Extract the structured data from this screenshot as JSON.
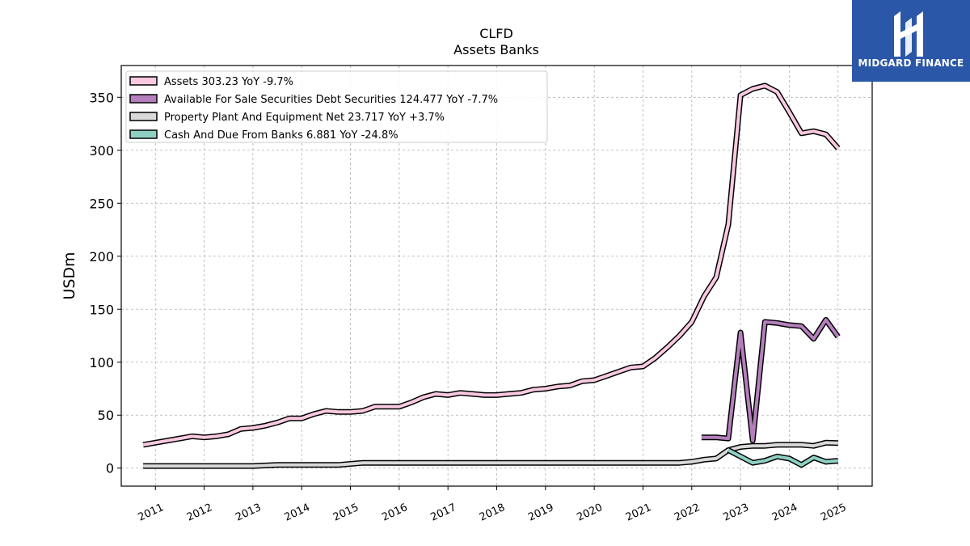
{
  "logo": {
    "text": "MIDGARD FINANCE",
    "background": "#2b57a8",
    "icon": "midgard-logo-icon"
  },
  "chart_data": {
    "type": "line",
    "title": "CLFD",
    "subtitle": "Assets Banks",
    "ylabel": "USDm",
    "xlabel": "",
    "ylim": [
      -17,
      380
    ],
    "xlim": [
      2010.3,
      2025.7
    ],
    "yticks": [
      0,
      50,
      100,
      150,
      200,
      250,
      300,
      350
    ],
    "xticks": [
      "2011",
      "2012",
      "2013",
      "2014",
      "2015",
      "2016",
      "2017",
      "2018",
      "2019",
      "2020",
      "2021",
      "2022",
      "2023",
      "2024",
      "2025"
    ],
    "grid": true,
    "legend_position": "top-left",
    "series": [
      {
        "name": "Assets",
        "legend": "Assets  303.23 YoY -9.7%",
        "color": "#f9c9e0",
        "x": [
          2010.75,
          2011.0,
          2011.25,
          2011.5,
          2011.75,
          2012.0,
          2012.25,
          2012.5,
          2012.75,
          2013.0,
          2013.25,
          2013.5,
          2013.75,
          2014.0,
          2014.25,
          2014.5,
          2014.75,
          2015.0,
          2015.25,
          2015.5,
          2015.75,
          2016.0,
          2016.25,
          2016.5,
          2016.75,
          2017.0,
          2017.25,
          2017.5,
          2017.75,
          2018.0,
          2018.25,
          2018.5,
          2018.75,
          2019.0,
          2019.25,
          2019.5,
          2019.75,
          2020.0,
          2020.25,
          2020.5,
          2020.75,
          2021.0,
          2021.25,
          2021.5,
          2021.75,
          2022.0,
          2022.25,
          2022.5,
          2022.75,
          2023.0,
          2023.25,
          2023.5,
          2023.75,
          2024.0,
          2024.25,
          2024.5,
          2024.75,
          2025.0
        ],
        "values": [
          22,
          24,
          26,
          28,
          30,
          29,
          30,
          32,
          37,
          38,
          40,
          43,
          47,
          47,
          51,
          54,
          53,
          53,
          54,
          58,
          58,
          58,
          62,
          67,
          70,
          69,
          71,
          70,
          69,
          69,
          70,
          71,
          74,
          75,
          77,
          78,
          82,
          83,
          87,
          91,
          95,
          96,
          104,
          114,
          125,
          138,
          162,
          180,
          230,
          352,
          358,
          361,
          355,
          336,
          316,
          318,
          315,
          302
        ]
      },
      {
        "name": "Available For Sale Securities Debt Securities",
        "legend": "Available For Sale Securities Debt Securities  124.477 YoY -7.7%",
        "color": "#b57fbd",
        "x": [
          2022.2,
          2022.5,
          2022.75,
          2023.0,
          2023.25,
          2023.5,
          2023.75,
          2024.0,
          2024.25,
          2024.5,
          2024.75,
          2025.0
        ],
        "values": [
          29,
          29,
          28,
          128,
          26,
          138,
          137,
          135,
          134,
          122,
          140,
          124
        ]
      },
      {
        "name": "Property Plant And Equipment Net",
        "legend": "Property Plant And Equipment Net  23.717 YoY +3.7%",
        "color": "#d9d9d9",
        "x": [
          2010.75,
          2011.0,
          2011.5,
          2012.0,
          2012.5,
          2013.0,
          2013.5,
          2014.0,
          2014.5,
          2014.75,
          2015.0,
          2015.25,
          2015.5,
          2016.0,
          2016.5,
          2017.0,
          2017.25,
          2017.5,
          2018.0,
          2018.5,
          2019.0,
          2019.5,
          2019.75,
          2020.0,
          2020.5,
          2021.0,
          2021.25,
          2021.75,
          2022.0,
          2022.25,
          2022.5,
          2022.75,
          2023.0,
          2023.25,
          2023.5,
          2023.75,
          2024.0,
          2024.25,
          2024.5,
          2024.75,
          2025.0
        ],
        "values": [
          2,
          2,
          2,
          2,
          2,
          2,
          3,
          3,
          3,
          3,
          4,
          5,
          5,
          5,
          5,
          5,
          5,
          5,
          5,
          5,
          5,
          5,
          5,
          5,
          5,
          5,
          5,
          5,
          6,
          8,
          9,
          17,
          20,
          21,
          21,
          22,
          22,
          22,
          21,
          24,
          23.7
        ]
      },
      {
        "name": "Cash And Due From Banks",
        "legend": "Cash And Due From Banks  6.881 YoY -24.8%",
        "color": "#8fd0c3",
        "x": [
          2022.75,
          2023.0,
          2023.25,
          2023.5,
          2023.75,
          2024.0,
          2024.25,
          2024.5,
          2024.75,
          2025.0
        ],
        "values": [
          17,
          11,
          5,
          7,
          11,
          9,
          3,
          10,
          6,
          7
        ]
      }
    ]
  }
}
